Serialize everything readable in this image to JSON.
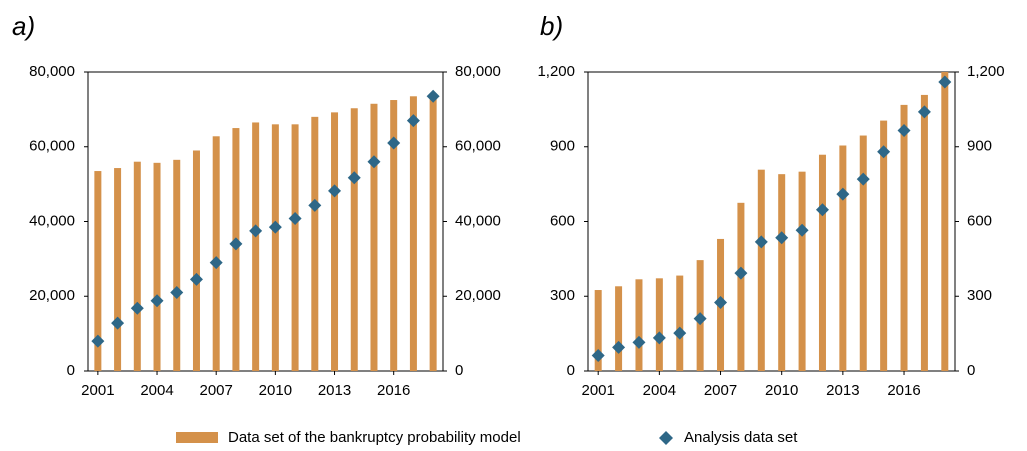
{
  "chart_data": [
    {
      "type": "bar",
      "title": "a)",
      "categories": [
        "2001",
        null,
        null,
        "2004",
        null,
        null,
        "2007",
        null,
        null,
        "2010",
        null,
        null,
        "2013",
        null,
        null,
        "2016",
        null,
        null
      ],
      "series": [
        {
          "name": "Data set of the bankruptcy probability model",
          "color": "#d4914a",
          "values": [
            53500,
            54300,
            56000,
            55700,
            56500,
            59000,
            62800,
            65000,
            66500,
            66000,
            66000,
            68000,
            69200,
            70300,
            71500,
            72500,
            73500,
            74000
          ]
        },
        {
          "name": "Analysis data set",
          "color": "#2e6787",
          "marker": "diamond",
          "values": [
            8000,
            12800,
            16800,
            18800,
            21000,
            24500,
            29000,
            34000,
            37500,
            38500,
            40800,
            44300,
            48200,
            51700,
            56000,
            61000,
            67000,
            73500
          ]
        }
      ],
      "ylim": [
        0,
        80000
      ],
      "yticks": [
        0,
        {
          "value": 20000,
          "label": "20,000"
        },
        {
          "value": 40000,
          "label": "40,000"
        },
        {
          "value": 60000,
          "label": "60,000"
        },
        {
          "value": 80000,
          "label": "80,000"
        }
      ],
      "y2lim": [
        0,
        80000
      ],
      "y2ticks": [
        0,
        {
          "value": 20000,
          "label": "20,000"
        },
        {
          "value": 40000,
          "label": "40,000"
        },
        {
          "value": 60000,
          "label": "60,000"
        },
        {
          "value": 80000,
          "label": "80,000"
        }
      ]
    },
    {
      "type": "bar",
      "title": "b)",
      "categories": [
        "2001",
        null,
        null,
        "2004",
        null,
        null,
        "2007",
        null,
        null,
        "2010",
        null,
        null,
        "2013",
        null,
        null,
        "2016",
        null,
        null
      ],
      "series": [
        {
          "name": "Data set of the bankruptcy probability model",
          "color": "#d4914a",
          "values": [
            325,
            340,
            368,
            372,
            383,
            445,
            530,
            675,
            808,
            790,
            800,
            868,
            905,
            945,
            1005,
            1068,
            1108,
            1200
          ]
        },
        {
          "name": "Analysis data set",
          "color": "#2e6787",
          "marker": "diamond",
          "values": [
            62,
            95,
            115,
            133,
            152,
            210,
            275,
            393,
            518,
            535,
            565,
            647,
            710,
            770,
            880,
            965,
            1040,
            1160
          ]
        }
      ],
      "ylim": [
        0,
        1200
      ],
      "yticks": [
        0,
        300,
        600,
        900,
        {
          "value": 1200,
          "label": "1,200"
        }
      ],
      "y2lim": [
        0,
        1200
      ],
      "y2ticks": [
        0,
        300,
        600,
        900,
        {
          "value": 1200,
          "label": "1,200"
        }
      ]
    }
  ]
}
